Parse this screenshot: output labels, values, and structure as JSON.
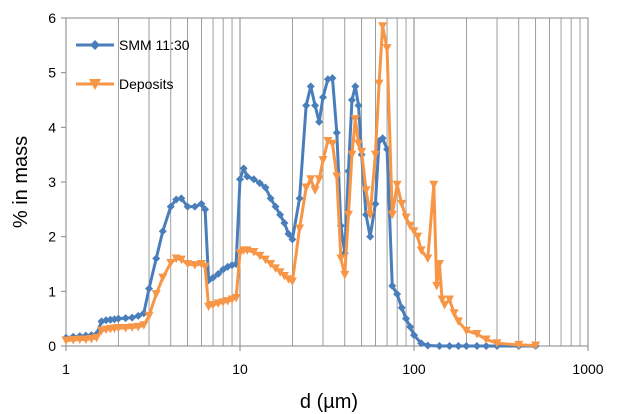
{
  "chart_data": {
    "type": "line",
    "xlabel": "d (µm)",
    "ylabel": "% in mass",
    "x_scale": "log",
    "xlim": [
      1,
      1000
    ],
    "ylim": [
      0,
      6
    ],
    "x_ticks": [
      1,
      10,
      100,
      1000
    ],
    "x_tick_labels": [
      "1",
      "10",
      "100",
      "1000"
    ],
    "y_ticks": [
      0,
      1,
      2,
      3,
      4,
      5,
      6
    ],
    "y_tick_labels": [
      "0",
      "1",
      "2",
      "3",
      "4",
      "5",
      "6"
    ],
    "grid": "vertical-minor-and-major",
    "legend_position": "top-left",
    "series": [
      {
        "name": "SMM 11:30",
        "color": "#4A7EBB",
        "marker": "diamond",
        "points": [
          [
            1.0,
            0.15
          ],
          [
            1.1,
            0.17
          ],
          [
            1.2,
            0.18
          ],
          [
            1.3,
            0.19
          ],
          [
            1.4,
            0.2
          ],
          [
            1.5,
            0.22
          ],
          [
            1.6,
            0.45
          ],
          [
            1.7,
            0.47
          ],
          [
            1.8,
            0.48
          ],
          [
            1.9,
            0.49
          ],
          [
            2.0,
            0.5
          ],
          [
            2.2,
            0.51
          ],
          [
            2.4,
            0.52
          ],
          [
            2.6,
            0.55
          ],
          [
            2.8,
            0.6
          ],
          [
            3.0,
            1.05
          ],
          [
            3.3,
            1.6
          ],
          [
            3.6,
            2.1
          ],
          [
            4.0,
            2.55
          ],
          [
            4.3,
            2.68
          ],
          [
            4.6,
            2.7
          ],
          [
            5.0,
            2.55
          ],
          [
            5.5,
            2.55
          ],
          [
            6.0,
            2.6
          ],
          [
            6.3,
            2.5
          ],
          [
            6.6,
            1.2
          ],
          [
            7.0,
            1.25
          ],
          [
            7.5,
            1.32
          ],
          [
            8.0,
            1.4
          ],
          [
            8.5,
            1.45
          ],
          [
            9.0,
            1.48
          ],
          [
            9.5,
            1.5
          ],
          [
            10.0,
            3.05
          ],
          [
            10.5,
            3.25
          ],
          [
            11.0,
            3.1
          ],
          [
            12.0,
            3.05
          ],
          [
            13.0,
            2.98
          ],
          [
            14.0,
            2.9
          ],
          [
            15.0,
            2.7
          ],
          [
            16.0,
            2.55
          ],
          [
            17.0,
            2.4
          ],
          [
            18.0,
            2.25
          ],
          [
            19.0,
            2.05
          ],
          [
            20.0,
            1.95
          ],
          [
            22.0,
            2.7
          ],
          [
            24.0,
            4.4
          ],
          [
            25.5,
            4.75
          ],
          [
            27.0,
            4.4
          ],
          [
            28.5,
            4.1
          ],
          [
            30.0,
            4.55
          ],
          [
            32.0,
            4.88
          ],
          [
            34.0,
            4.9
          ],
          [
            36.0,
            3.9
          ],
          [
            38.0,
            2.2
          ],
          [
            40.0,
            1.7
          ],
          [
            42.0,
            3.2
          ],
          [
            44.0,
            4.5
          ],
          [
            46.0,
            4.75
          ],
          [
            48.0,
            4.4
          ],
          [
            50.0,
            3.5
          ],
          [
            53.0,
            2.4
          ],
          [
            56.0,
            2.0
          ],
          [
            60.0,
            2.6
          ],
          [
            63.0,
            3.75
          ],
          [
            66.0,
            3.8
          ],
          [
            70.0,
            3.6
          ],
          [
            75.0,
            1.1
          ],
          [
            80.0,
            0.95
          ],
          [
            85.0,
            0.7
          ],
          [
            90.0,
            0.5
          ],
          [
            95.0,
            0.35
          ],
          [
            100.0,
            0.2
          ],
          [
            110.0,
            0.05
          ],
          [
            120.0,
            0.01
          ],
          [
            140.0,
            0.0
          ],
          [
            160.0,
            0.0
          ],
          [
            180.0,
            0.0
          ],
          [
            200.0,
            0.0
          ],
          [
            230.0,
            0.0
          ],
          [
            260.0,
            0.0
          ],
          [
            300.0,
            0.0
          ],
          [
            400.0,
            0.0
          ],
          [
            500.0,
            0.0
          ]
        ]
      },
      {
        "name": "Deposits",
        "color": "#F79646",
        "marker": "triangle-down",
        "points": [
          [
            1.0,
            0.1
          ],
          [
            1.1,
            0.11
          ],
          [
            1.2,
            0.12
          ],
          [
            1.3,
            0.12
          ],
          [
            1.4,
            0.13
          ],
          [
            1.5,
            0.15
          ],
          [
            1.6,
            0.28
          ],
          [
            1.7,
            0.3
          ],
          [
            1.8,
            0.31
          ],
          [
            1.9,
            0.32
          ],
          [
            2.0,
            0.33
          ],
          [
            2.2,
            0.33
          ],
          [
            2.4,
            0.34
          ],
          [
            2.6,
            0.35
          ],
          [
            2.8,
            0.38
          ],
          [
            3.0,
            0.55
          ],
          [
            3.3,
            0.95
          ],
          [
            3.6,
            1.25
          ],
          [
            4.0,
            1.52
          ],
          [
            4.3,
            1.6
          ],
          [
            4.6,
            1.58
          ],
          [
            5.0,
            1.5
          ],
          [
            5.5,
            1.48
          ],
          [
            6.0,
            1.5
          ],
          [
            6.3,
            1.45
          ],
          [
            6.6,
            0.72
          ],
          [
            7.0,
            0.75
          ],
          [
            7.5,
            0.78
          ],
          [
            8.0,
            0.8
          ],
          [
            8.5,
            0.82
          ],
          [
            9.0,
            0.85
          ],
          [
            9.5,
            0.88
          ],
          [
            10.0,
            1.7
          ],
          [
            10.5,
            1.75
          ],
          [
            11.0,
            1.75
          ],
          [
            12.0,
            1.72
          ],
          [
            13.0,
            1.65
          ],
          [
            14.0,
            1.58
          ],
          [
            15.0,
            1.5
          ],
          [
            16.0,
            1.42
          ],
          [
            17.0,
            1.35
          ],
          [
            18.0,
            1.28
          ],
          [
            19.0,
            1.22
          ],
          [
            20.0,
            1.18
          ],
          [
            22.0,
            2.15
          ],
          [
            24.0,
            2.9
          ],
          [
            25.5,
            3.05
          ],
          [
            27.0,
            2.85
          ],
          [
            28.5,
            3.05
          ],
          [
            30.0,
            3.4
          ],
          [
            32.0,
            3.75
          ],
          [
            34.0,
            3.7
          ],
          [
            36.0,
            3.1
          ],
          [
            38.0,
            1.6
          ],
          [
            40.0,
            1.3
          ],
          [
            42.0,
            2.4
          ],
          [
            44.0,
            3.5
          ],
          [
            46.0,
            4.15
          ],
          [
            48.0,
            3.7
          ],
          [
            50.0,
            3.55
          ],
          [
            53.0,
            2.85
          ],
          [
            56.0,
            2.4
          ],
          [
            60.0,
            3.5
          ],
          [
            63.0,
            4.8
          ],
          [
            66.0,
            5.85
          ],
          [
            70.0,
            5.45
          ],
          [
            75.0,
            2.4
          ],
          [
            80.0,
            2.95
          ],
          [
            85.0,
            2.6
          ],
          [
            90.0,
            2.35
          ],
          [
            95.0,
            2.2
          ],
          [
            100.0,
            2.1
          ],
          [
            105.0,
            2.0
          ],
          [
            110.0,
            1.75
          ],
          [
            120.0,
            1.6
          ],
          [
            130.0,
            2.95
          ],
          [
            135.0,
            1.1
          ],
          [
            140.0,
            1.5
          ],
          [
            145.0,
            0.85
          ],
          [
            150.0,
            0.75
          ],
          [
            160.0,
            0.85
          ],
          [
            170.0,
            0.6
          ],
          [
            180.0,
            0.45
          ],
          [
            200.0,
            0.28
          ],
          [
            230.0,
            0.22
          ],
          [
            260.0,
            0.12
          ],
          [
            300.0,
            0.05
          ],
          [
            400.0,
            0.02
          ],
          [
            500.0,
            0.01
          ]
        ]
      }
    ]
  }
}
